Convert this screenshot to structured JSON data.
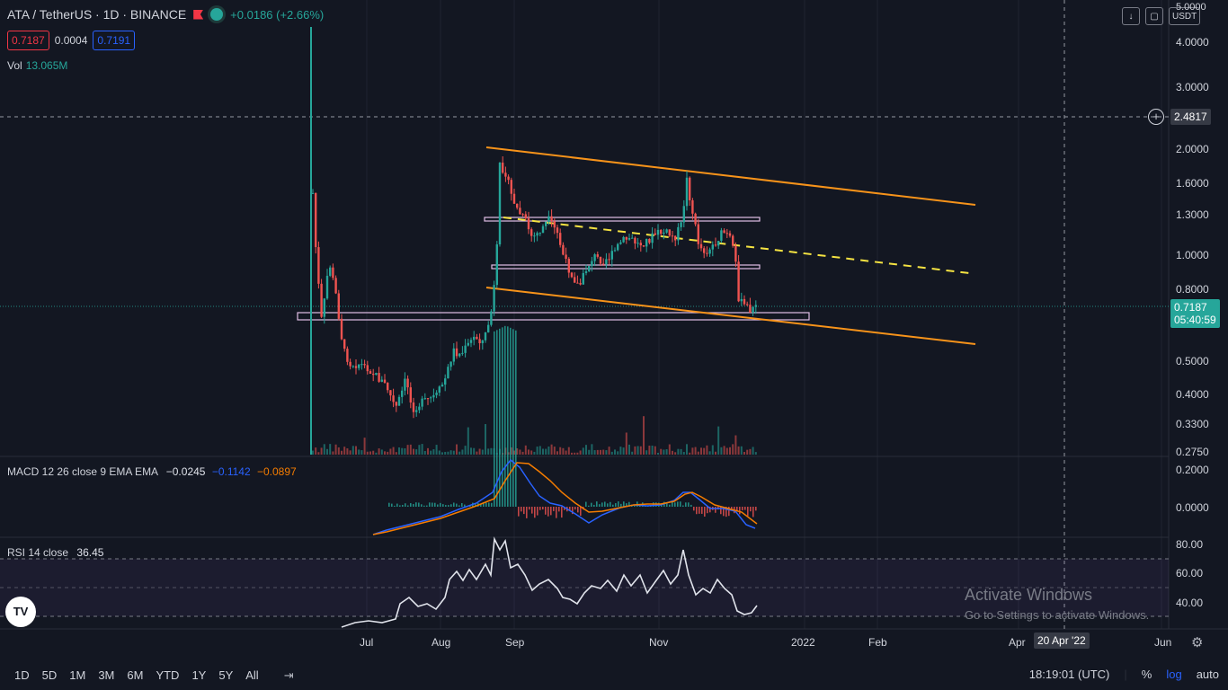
{
  "header": {
    "symbol": "ATA / TetherUS · 1D · BINANCE",
    "change": "+0.0186 (+2.66%)",
    "bid": "0.7187",
    "spread": "0.0004",
    "ask": "0.7191",
    "vol_label": "Vol",
    "vol_value": "13.065M"
  },
  "top_right": {
    "currency": "USDT",
    "y_top": "5.0000"
  },
  "price_axis": [
    "4.0000",
    "3.0000",
    "2.0000",
    "1.6000",
    "1.3000",
    "1.0000",
    "0.8000",
    "0.5000",
    "0.4000",
    "0.3300",
    "0.2750"
  ],
  "crosshair_price": "2.4817",
  "last_price": "0.7187",
  "countdown": "05:40:59",
  "macd": {
    "label": "MACD 12 26 close 9 EMA EMA",
    "v1": "−0.0245",
    "v2": "−0.1142",
    "v3": "−0.0897",
    "axis": [
      "0.2000",
      "0.0000"
    ]
  },
  "rsi": {
    "label": "RSI 14 close",
    "value": "36.45",
    "axis": [
      "80.00",
      "60.00",
      "40.00"
    ]
  },
  "time_axis": [
    "Jul",
    "Aug",
    "Sep",
    "Nov",
    "2022",
    "Feb",
    "Apr",
    "Jun"
  ],
  "crosshair_date": "20 Apr '22",
  "watermark": {
    "line1": "Activate Windows",
    "line2": "Go to Settings to activate Windows."
  },
  "bottom_bar": {
    "ranges": [
      "1D",
      "5D",
      "1M",
      "3M",
      "6M",
      "YTD",
      "1Y",
      "5Y",
      "All"
    ],
    "clock": "18:19:01 (UTC)",
    "pct": "%",
    "log": "log",
    "auto": "auto"
  },
  "logo": "TV",
  "colors": {
    "up": "#26a69a",
    "down": "#ef5350",
    "channel": "#f7931a",
    "midline": "#f5e342",
    "bg": "#131722"
  }
}
